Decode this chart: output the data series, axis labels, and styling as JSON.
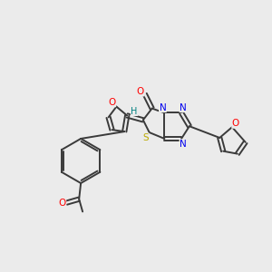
{
  "background_color": "#ebebeb",
  "bond_color": "#3a3a3a",
  "atom_colors": {
    "O": "#ff0000",
    "N": "#0000ee",
    "S": "#bbaa00",
    "C": "#3a3a3a",
    "H": "#008080"
  },
  "figsize": [
    3.0,
    3.0
  ],
  "dpi": 100
}
